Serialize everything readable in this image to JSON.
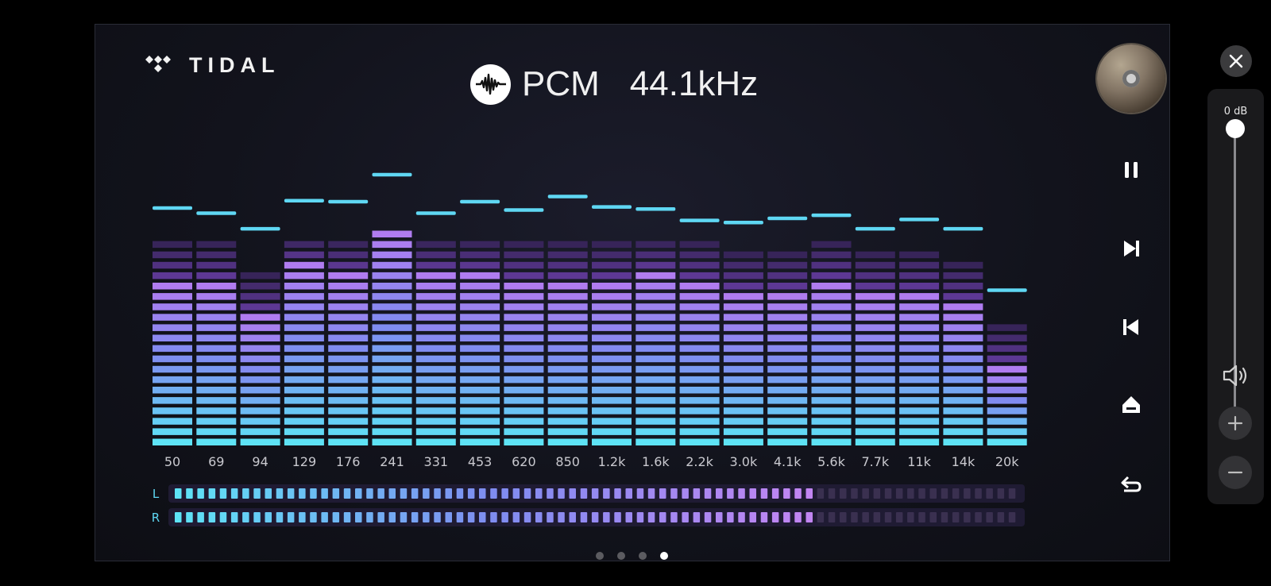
{
  "logo": {
    "text": "TIDAL"
  },
  "format": {
    "type": "PCM",
    "sample_rate": "44.1kHz",
    "icon": "waveform-icon"
  },
  "album_art": {
    "icon": "album-art-disc"
  },
  "controls": [
    {
      "name": "pause-button",
      "icon": "pause-icon"
    },
    {
      "name": "next-track-button",
      "icon": "skip-next-icon"
    },
    {
      "name": "previous-track-button",
      "icon": "skip-previous-icon"
    },
    {
      "name": "eject-button",
      "icon": "eject-icon"
    },
    {
      "name": "back-button",
      "icon": "back-arrow-icon"
    }
  ],
  "chart_data": {
    "type": "bar",
    "segments_total": 20,
    "categories": [
      "50",
      "69",
      "94",
      "129",
      "176",
      "241",
      "331",
      "453",
      "620",
      "850",
      "1.2k",
      "1.6k",
      "2.2k",
      "3.0k",
      "4.1k",
      "5.6k",
      "7.7k",
      "11k",
      "14k",
      "20k"
    ],
    "values": [
      20,
      20,
      17,
      20,
      20,
      21,
      20,
      20,
      20,
      20,
      20,
      20,
      20,
      19,
      19,
      20,
      19,
      19,
      18,
      12
    ],
    "bright_segments": [
      16,
      16,
      13,
      18,
      17,
      21,
      17,
      17,
      16,
      16,
      16,
      17,
      16,
      15,
      15,
      16,
      15,
      15,
      14,
      8
    ],
    "peaks": [
      23,
      22.5,
      21,
      23.7,
      23.6,
      26.2,
      22.5,
      23.6,
      22.8,
      24.1,
      23.1,
      22.9,
      21.8,
      21.6,
      22,
      22.3,
      21,
      21.9,
      21,
      15.1
    ],
    "colors": {
      "bottom": "#5ee3f6",
      "mid": "#7f8cf0",
      "top": "#b07cf0",
      "dim": "#4a2c78",
      "peak": "#5fd7f3"
    }
  },
  "level_meters": {
    "total_segments": 75,
    "channels": [
      {
        "label": "L",
        "level": 0.763
      },
      {
        "label": "R",
        "level": 0.755
      }
    ]
  },
  "pagination": {
    "pages": 4,
    "current": 4
  },
  "volume": {
    "label": "0 dB",
    "level": 1.0,
    "speaker_icon": "speaker-icon",
    "plus_icon": "plus-icon",
    "minus_icon": "minus-icon"
  },
  "window": {
    "close_icon": "close-icon"
  }
}
